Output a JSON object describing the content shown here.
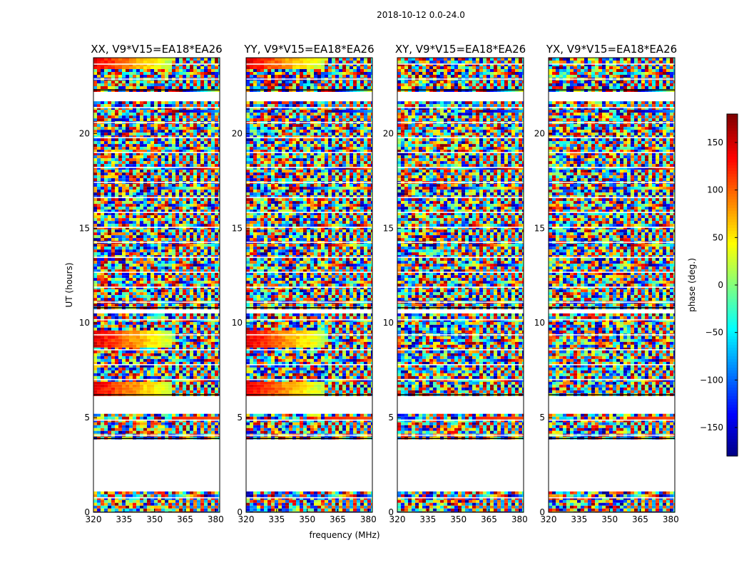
{
  "chart_data": {
    "type": "heatmap",
    "title": "2018-10-12 0.0-24.0",
    "xlabel": "frequency (MHz)",
    "ylabel": "UT (hours)",
    "xlim": [
      320,
      382
    ],
    "ylim": [
      0,
      24
    ],
    "x_ticks": [
      320,
      335,
      350,
      365,
      380
    ],
    "y_ticks": [
      0,
      5,
      10,
      15,
      20
    ],
    "panels": [
      {
        "title": "XX, V9*V15=EA18*EA26",
        "polarization": "XX"
      },
      {
        "title": "YY, V9*V15=EA18*EA26",
        "polarization": "YY"
      },
      {
        "title": "XY, V9*V15=EA18*EA26",
        "polarization": "XY"
      },
      {
        "title": "YX, V9*V15=EA18*EA26",
        "polarization": "YX"
      }
    ],
    "colorbar": {
      "label": "phase (deg.)",
      "colormap": "jet",
      "range": [
        -180,
        180
      ],
      "ticks": [
        150,
        100,
        50,
        0,
        -50,
        -100,
        -150
      ],
      "tick_labels": [
        "150",
        "100",
        "50",
        "0",
        "−50",
        "−100",
        "−150"
      ]
    },
    "data_present_ut_ranges": [
      [
        0.0,
        1.1
      ],
      [
        3.9,
        5.2
      ],
      [
        6.2,
        10.5
      ],
      [
        10.8,
        21.7
      ],
      [
        22.3,
        24.0
      ]
    ]
  }
}
